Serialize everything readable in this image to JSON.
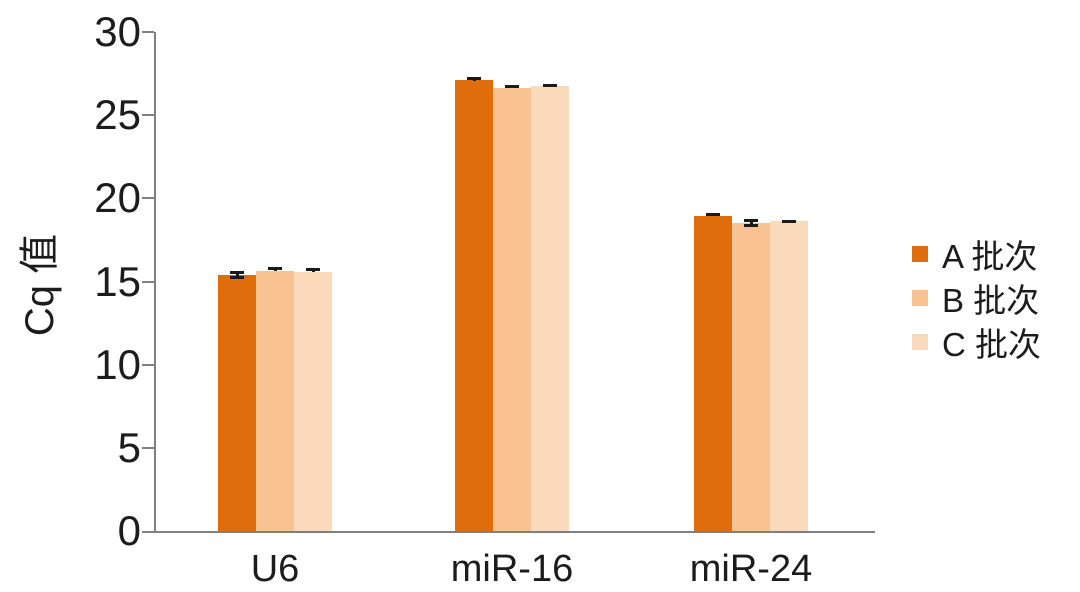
{
  "chart_data": {
    "type": "bar",
    "title": "",
    "xlabel": "",
    "ylabel": "Cq 值",
    "ylim": [
      0,
      30
    ],
    "yticks": [
      0,
      5,
      10,
      15,
      20,
      25,
      30
    ],
    "categories": [
      "U6",
      "miR-16",
      "miR-24"
    ],
    "series": [
      {
        "name": "A 批次",
        "color": "#E06D0B",
        "values": [
          15.4,
          27.1,
          18.95
        ],
        "errors": [
          0.25,
          0.2,
          0.15
        ]
      },
      {
        "name": "B 批次",
        "color": "#F8C291",
        "values": [
          15.65,
          26.65,
          18.5
        ],
        "errors": [
          0.2,
          0.15,
          0.25
        ]
      },
      {
        "name": "C 批次",
        "color": "#FBDABB",
        "values": [
          15.6,
          26.75,
          18.65
        ],
        "errors": [
          0.2,
          0.15,
          0.05
        ]
      }
    ],
    "legend_position": "right",
    "grid": false,
    "error_bar_color": "#1a1a1a"
  },
  "axis": {
    "line_color": "#808080",
    "text_color": "#1c1c1c"
  }
}
